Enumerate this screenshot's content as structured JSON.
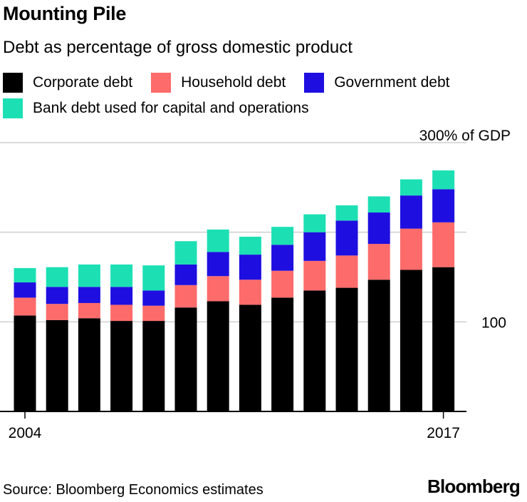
{
  "header": {
    "title": "Mounting Pile",
    "subtitle": "Debt as percentage of gross domestic product"
  },
  "legend": [
    {
      "label": "Corporate debt",
      "color": "#000000"
    },
    {
      "label": "Household debt",
      "color": "#fd6b6b"
    },
    {
      "label": "Government debt",
      "color": "#1e0fe0"
    },
    {
      "label": "Bank debt used for capital and operations",
      "color": "#1ce0b4"
    }
  ],
  "footer": {
    "source": "Source: Bloomberg Economics estimates",
    "brand": "Bloomberg"
  },
  "chart_data": {
    "type": "bar",
    "stacked": true,
    "x": [
      2004,
      2005,
      2006,
      2007,
      2008,
      2009,
      2010,
      2011,
      2012,
      2013,
      2014,
      2015,
      2016,
      2017
    ],
    "x_tick_labels": [
      "2004",
      "",
      "",
      "",
      "",
      "",
      "",
      "",
      "",
      "",
      "",
      "",
      "",
      "2017"
    ],
    "y_ticks": [
      {
        "value": 100,
        "label": "100"
      },
      {
        "value": 200,
        "label": ""
      },
      {
        "value": 300,
        "label": "300% of GDP"
      }
    ],
    "ylim": [
      0,
      300
    ],
    "grid": true,
    "series": [
      {
        "name": "Corporate debt",
        "color": "#000000",
        "values": [
          107,
          102,
          104,
          101,
          101,
          116,
          123,
          119,
          127,
          135,
          138,
          147,
          158,
          161
        ]
      },
      {
        "name": "Household debt",
        "color": "#fd6b6b",
        "values": [
          20,
          18,
          17,
          18,
          17,
          25,
          28,
          28,
          30,
          33,
          36,
          40,
          46,
          50
        ]
      },
      {
        "name": "Government debt",
        "color": "#1e0fe0",
        "values": [
          17,
          19,
          18,
          20,
          17,
          23,
          27,
          28,
          29,
          32,
          39,
          35,
          37,
          37
        ]
      },
      {
        "name": "Bank debt used for capital and operations",
        "color": "#1ce0b4",
        "values": [
          16,
          22,
          25,
          25,
          28,
          26,
          25,
          20,
          20,
          20,
          17,
          18,
          18,
          21
        ]
      }
    ]
  }
}
